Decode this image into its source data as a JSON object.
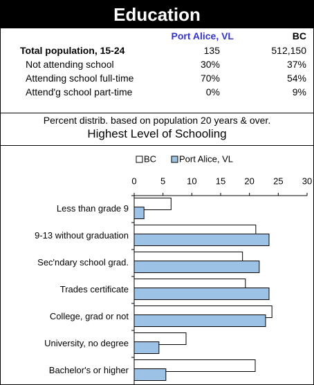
{
  "header": {
    "title": "Education"
  },
  "table": {
    "columns": [
      "Port Alice, VL",
      "BC"
    ],
    "rows": [
      [
        "Total population, 15-24",
        "135",
        "512,150"
      ],
      [
        "Not attending school",
        "30%",
        "37%"
      ],
      [
        "Attending school full-time",
        "70%",
        "54%"
      ],
      [
        "Attend'g school part-time",
        "0%",
        "9%"
      ]
    ]
  },
  "chart_data": {
    "type": "hbar",
    "subtitle": "Percent distrib. based on population 20 years & over.",
    "title": "Highest Level of Schooling",
    "categories": [
      "Less than grade 9",
      "9-13 without graduation",
      "Sec'ndary school grad.",
      "Trades certificate",
      "College, grad or not",
      "University, no degree",
      "Bachelor's or higher"
    ],
    "series": [
      {
        "name": "BC",
        "color": "#ffffff",
        "values": [
          6.4,
          21.1,
          18.8,
          19.3,
          23.9,
          9.0,
          21.0
        ]
      },
      {
        "name": "Port Alice, VL",
        "color": "#9cc2e5",
        "values": [
          1.7,
          23.4,
          21.7,
          23.4,
          22.8,
          4.3,
          5.5
        ]
      }
    ],
    "xlim": [
      0,
      30
    ],
    "xticks": [
      0,
      5,
      10,
      15,
      20,
      25,
      30
    ]
  }
}
